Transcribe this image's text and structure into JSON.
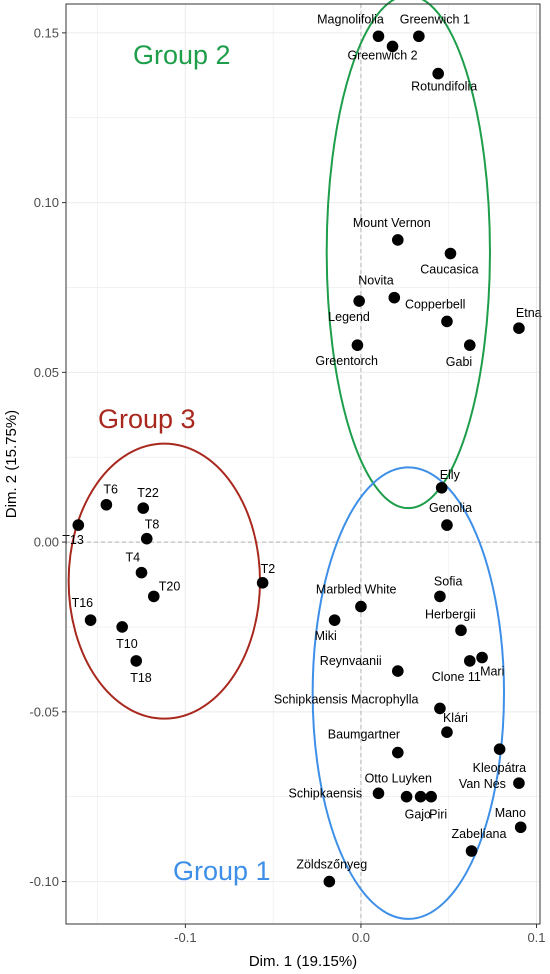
{
  "chart_data": {
    "type": "scatter",
    "xlabel": "Dim. 1 (19.15%)",
    "ylabel": "Dim. 2 (15.75%)",
    "xlim": [
      -0.168,
      0.102
    ],
    "ylim": [
      -0.1125,
      0.1585
    ],
    "x_ticks": [
      {
        "value": -0.1,
        "label": "-0.1"
      },
      {
        "value": 0.0,
        "label": "0.0"
      },
      {
        "value": 0.1,
        "label": "0.1"
      }
    ],
    "y_ticks": [
      {
        "value": -0.1,
        "label": "-0.10"
      },
      {
        "value": -0.05,
        "label": "-0.05"
      },
      {
        "value": 0.0,
        "label": "0.00"
      },
      {
        "value": 0.05,
        "label": "0.05"
      },
      {
        "value": 0.1,
        "label": "0.10"
      },
      {
        "value": 0.15,
        "label": "0.15"
      }
    ],
    "grid": true,
    "reference_lines": {
      "x": 0,
      "y": 0
    },
    "points": [
      {
        "label": "Magnolifolia",
        "x": 0.01,
        "y": 0.149
      },
      {
        "label": "Greenwich 1",
        "x": 0.033,
        "y": 0.149
      },
      {
        "label": "Greenwich 2",
        "x": 0.018,
        "y": 0.146
      },
      {
        "label": "Rotundifolia",
        "x": 0.044,
        "y": 0.138
      },
      {
        "label": "Mount Vernon",
        "x": 0.021,
        "y": 0.089
      },
      {
        "label": "Caucasica",
        "x": 0.051,
        "y": 0.085
      },
      {
        "label": "Novita",
        "x": 0.019,
        "y": 0.072
      },
      {
        "label": "Legend",
        "x": -0.001,
        "y": 0.071
      },
      {
        "label": "Copperbell",
        "x": 0.049,
        "y": 0.065
      },
      {
        "label": "Etna",
        "x": 0.09,
        "y": 0.063
      },
      {
        "label": "Greentorch",
        "x": -0.002,
        "y": 0.058
      },
      {
        "label": "Gabi",
        "x": 0.062,
        "y": 0.058
      },
      {
        "label": "Elly",
        "x": 0.046,
        "y": 0.016
      },
      {
        "label": "Genolia",
        "x": 0.049,
        "y": 0.005
      },
      {
        "label": "Sofia",
        "x": 0.045,
        "y": -0.016
      },
      {
        "label": "Marbled White",
        "x": 0.0,
        "y": -0.019
      },
      {
        "label": "Miki",
        "x": -0.015,
        "y": -0.023
      },
      {
        "label": "Herbergii",
        "x": 0.057,
        "y": -0.026
      },
      {
        "label": "Mari",
        "x": 0.069,
        "y": -0.034
      },
      {
        "label": "Clone 11",
        "x": 0.062,
        "y": -0.035
      },
      {
        "label": "Reynvaanii",
        "x": 0.021,
        "y": -0.038
      },
      {
        "label": "Schipkaensis Macrophylla",
        "x": 0.045,
        "y": -0.049
      },
      {
        "label": "Klári",
        "x": 0.049,
        "y": -0.056
      },
      {
        "label": "Kleopátra",
        "x": 0.079,
        "y": -0.061
      },
      {
        "label": "Baumgartner",
        "x": 0.021,
        "y": -0.062
      },
      {
        "label": "Van Nes",
        "x": 0.09,
        "y": -0.071
      },
      {
        "label": "Otto Luyken",
        "x": 0.026,
        "y": -0.075
      },
      {
        "label": "Schipkaensis",
        "x": 0.01,
        "y": -0.074
      },
      {
        "label": "Gajo",
        "x": 0.034,
        "y": -0.075
      },
      {
        "label": "Piri",
        "x": 0.04,
        "y": -0.075
      },
      {
        "label": "Mano",
        "x": 0.091,
        "y": -0.084
      },
      {
        "label": "Zabeliana",
        "x": 0.063,
        "y": -0.091
      },
      {
        "label": "Zöldszőnyeg",
        "x": -0.018,
        "y": -0.1
      },
      {
        "label": "T6",
        "x": -0.145,
        "y": 0.011
      },
      {
        "label": "T22",
        "x": -0.124,
        "y": 0.01
      },
      {
        "label": "T13",
        "x": -0.161,
        "y": 0.005
      },
      {
        "label": "T8",
        "x": -0.122,
        "y": 0.001
      },
      {
        "label": "T4",
        "x": -0.125,
        "y": -0.009
      },
      {
        "label": "T20",
        "x": -0.118,
        "y": -0.016
      },
      {
        "label": "T2",
        "x": -0.056,
        "y": -0.012
      },
      {
        "label": "T16",
        "x": -0.154,
        "y": -0.023
      },
      {
        "label": "T10",
        "x": -0.136,
        "y": -0.025
      },
      {
        "label": "T18",
        "x": -0.128,
        "y": -0.035
      }
    ],
    "groups": [
      {
        "name": "Group 2",
        "color": "#1e9e4b",
        "center": [
          0.027,
          0.0855
        ],
        "radius": [
          0.0465,
          0.0755
        ]
      },
      {
        "name": "Group 3",
        "color": "#a8281e",
        "center": [
          -0.112,
          -0.0115
        ],
        "radius": [
          0.0545,
          0.0405
        ]
      },
      {
        "name": "Group 1",
        "color": "#3d8fe8",
        "center": [
          0.027,
          -0.0445
        ],
        "radius": [
          0.0545,
          0.0665
        ]
      }
    ]
  }
}
